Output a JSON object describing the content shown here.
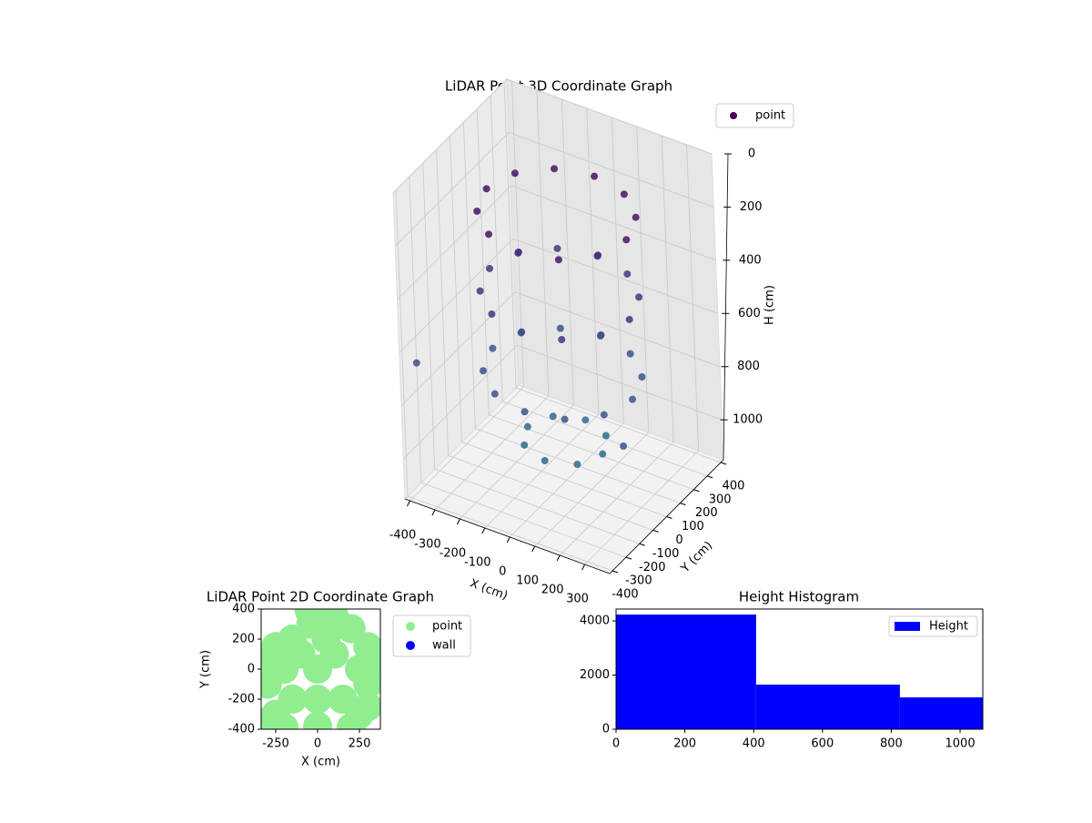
{
  "chart_data": [
    {
      "type": "scatter3d",
      "title": "LiDAR Point 3D Coordinate Graph",
      "xlabel": "X (cm)",
      "ylabel": "Y (cm)",
      "zlabel": "H (cm)",
      "cmap": "viridis",
      "grid": true,
      "legend": "upper right",
      "xlim": [
        -420,
        400
      ],
      "ylim": [
        -420,
        420
      ],
      "zlim": [
        1150,
        0
      ],
      "xticks": [
        -400,
        -300,
        -200,
        -100,
        0,
        100,
        200,
        300
      ],
      "yticks": [
        -400,
        -300,
        -200,
        -100,
        0,
        100,
        200,
        300,
        400
      ],
      "zticks": [
        0,
        200,
        400,
        600,
        800,
        1000
      ],
      "series": [
        {
          "name": "point",
          "color": "#440154",
          "x": [
            280,
            242,
            140,
            0,
            -140,
            -242,
            -280,
            -242,
            -140,
            0,
            140,
            242,
            280,
            242,
            140,
            0,
            -140,
            -242,
            -280,
            -242,
            -140,
            0,
            140,
            242,
            280,
            242,
            140,
            0,
            -140,
            -242,
            -280,
            -242,
            -140,
            0,
            140,
            242,
            150,
            106,
            0,
            -106,
            -150,
            -106,
            0,
            106,
            -420,
            350
          ],
          "y": [
            0,
            140,
            242,
            280,
            242,
            140,
            0,
            -140,
            -242,
            -280,
            -242,
            -140,
            0,
            140,
            242,
            280,
            242,
            140,
            0,
            -140,
            -242,
            -280,
            -242,
            -140,
            0,
            140,
            242,
            280,
            242,
            140,
            0,
            -140,
            -242,
            -280,
            -242,
            -140,
            0,
            106,
            150,
            106,
            0,
            -106,
            -150,
            -106,
            -300,
            -200
          ],
          "z": [
            150,
            150,
            150,
            150,
            150,
            150,
            150,
            150,
            150,
            150,
            150,
            150,
            450,
            450,
            450,
            450,
            450,
            450,
            450,
            450,
            450,
            450,
            450,
            450,
            750,
            750,
            750,
            750,
            750,
            750,
            750,
            750,
            750,
            750,
            750,
            750,
            1000,
            1000,
            1000,
            1000,
            1000,
            1000,
            1000,
            1000,
            700,
            800
          ]
        }
      ]
    },
    {
      "type": "scatter",
      "title": "LiDAR Point 2D Coordinate Graph",
      "xlabel": "X (cm)",
      "ylabel": "Y (cm)",
      "legend": "outside right",
      "xlim": [
        -337,
        375
      ],
      "ylim": [
        -400,
        400
      ],
      "xticks": [
        -250,
        0,
        250
      ],
      "yticks": [
        -400,
        -200,
        0,
        200,
        400
      ],
      "series": [
        {
          "name": "point",
          "color": "#90ee90",
          "x": [
            -50,
            0,
            100,
            -40,
            200,
            -250,
            300,
            350,
            -330,
            -350,
            400,
            -300,
            300,
            -250,
            250,
            -200,
            200,
            0,
            0,
            100,
            -100,
            150,
            -150,
            50,
            -150,
            250,
            -200,
            300,
            -300,
            0
          ],
          "y": [
            390,
            330,
            350,
            300,
            270,
            150,
            150,
            100,
            80,
            0,
            50,
            -100,
            -100,
            -300,
            -300,
            -390,
            -390,
            -200,
            0,
            100,
            100,
            -200,
            -200,
            200,
            200,
            0,
            0,
            -250,
            -350,
            -380
          ]
        },
        {
          "name": "wall",
          "color": "#0000ff",
          "x": [],
          "y": []
        }
      ]
    },
    {
      "type": "histogram",
      "title": "Height Histogram",
      "legend": "upper right",
      "xlim": [
        0,
        1066
      ],
      "ylim": [
        0,
        4437
      ],
      "xticks": [
        0,
        200,
        400,
        600,
        800,
        1000
      ],
      "yticks": [
        0,
        2000,
        4000
      ],
      "series": [
        {
          "name": "Height",
          "color": "#0000ff",
          "bins": [
            0,
            407,
            825,
            1066
          ],
          "values": [
            4235,
            1647,
            1176
          ]
        }
      ]
    }
  ]
}
